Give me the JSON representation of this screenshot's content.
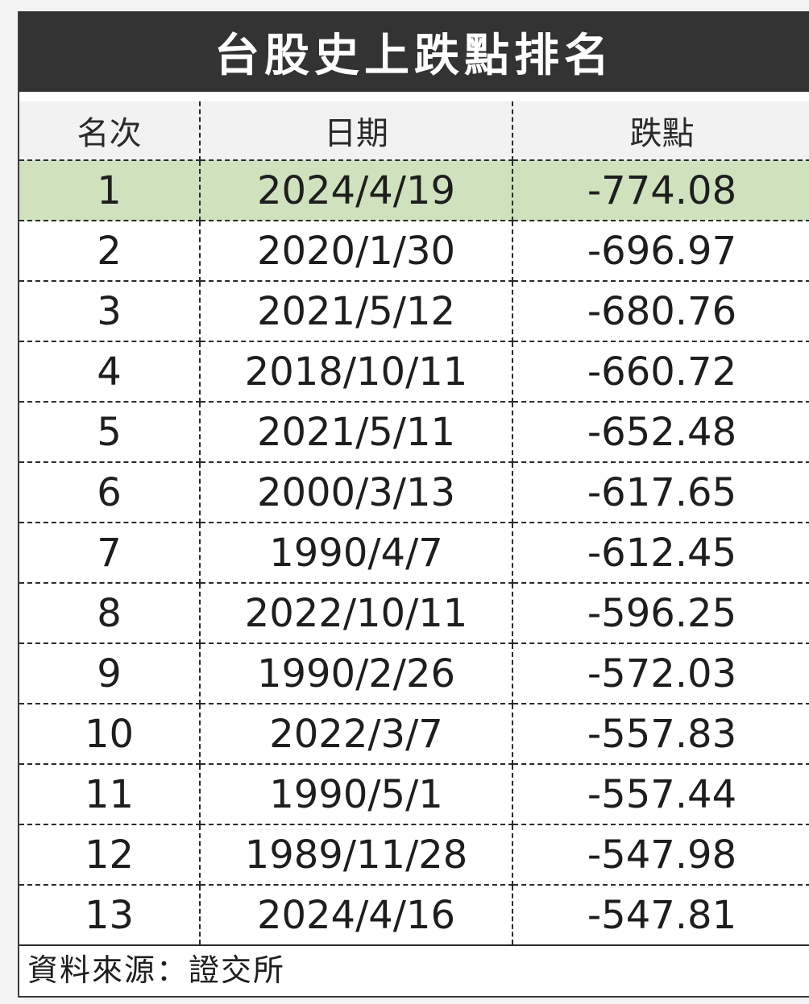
{
  "title": "台股史上跌點排名",
  "table": {
    "headers": [
      "名次",
      "日期",
      "跌點"
    ],
    "rows": [
      {
        "rank": "1",
        "date": "2024/4/19",
        "drop": "-774.08"
      },
      {
        "rank": "2",
        "date": "2020/1/30",
        "drop": "-696.97"
      },
      {
        "rank": "3",
        "date": "2021/5/12",
        "drop": "-680.76"
      },
      {
        "rank": "4",
        "date": "2018/10/11",
        "drop": "-660.72"
      },
      {
        "rank": "5",
        "date": "2021/5/11",
        "drop": "-652.48"
      },
      {
        "rank": "6",
        "date": "2000/3/13",
        "drop": "-617.65"
      },
      {
        "rank": "7",
        "date": "1990/4/7",
        "drop": "-612.45"
      },
      {
        "rank": "8",
        "date": "2022/10/11",
        "drop": "-596.25"
      },
      {
        "rank": "9",
        "date": "1990/2/26",
        "drop": "-572.03"
      },
      {
        "rank": "10",
        "date": "2022/3/7",
        "drop": "-557.83"
      },
      {
        "rank": "11",
        "date": "1990/5/1",
        "drop": "-557.44"
      },
      {
        "rank": "12",
        "date": "1989/11/28",
        "drop": "-547.98"
      },
      {
        "rank": "13",
        "date": "2024/4/16",
        "drop": "-547.81"
      }
    ]
  },
  "source": "資料來源：證交所",
  "colors": {
    "title_bg": "#333333",
    "title_text": "#ffffff",
    "highlight_row": "#cfe2bd",
    "header_bg": "#f2f2f2"
  }
}
